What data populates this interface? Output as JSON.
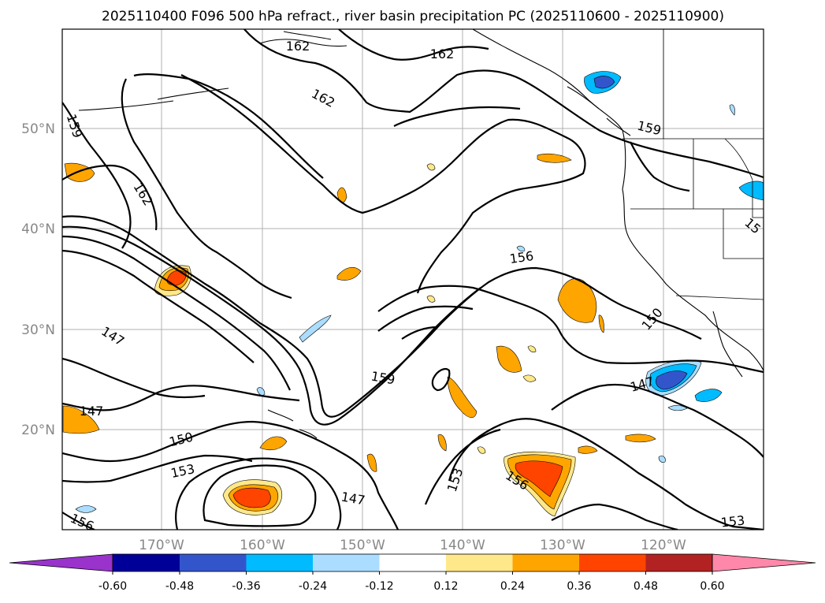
{
  "title": "2025110400 F096 500 hPa refract., river basin precipitation PC (2025110600 - 2025110900)",
  "lat_labels": [
    "50°N",
    "40°N",
    "30°N",
    "20°N"
  ],
  "lon_labels": [
    "170°W",
    "160°W",
    "150°W",
    "140°W",
    "130°W",
    "120°W"
  ],
  "contour_labels": {
    "c162a": "162",
    "c162b": "162",
    "c162c": "162",
    "c162d": "162",
    "c159a": "159",
    "c159b": "159",
    "c159c": "159",
    "c156a": "156",
    "c156b": "156",
    "c156c": "156",
    "c153a": "153",
    "c153b": "153",
    "c153c": "153",
    "c150a": "150",
    "c150b": "150",
    "c147a": "147",
    "c147b": "147",
    "c147c": "147",
    "c147d": "147",
    "c15x": "15"
  },
  "colorbar": {
    "ticks": [
      "-0.60",
      "-0.48",
      "-0.36",
      "-0.24",
      "-0.12",
      "0.12",
      "0.24",
      "0.36",
      "0.48",
      "0.60"
    ],
    "colors": [
      "#9933cc",
      "#000099",
      "#3355cc",
      "#00bbff",
      "#aaddff",
      "#ffffff",
      "#ffe88a",
      "#ffa500",
      "#ff4400",
      "#b22222",
      "#ff88aa"
    ]
  },
  "grid_color": "#b0b0b0",
  "tick_label_color": "#888888"
}
